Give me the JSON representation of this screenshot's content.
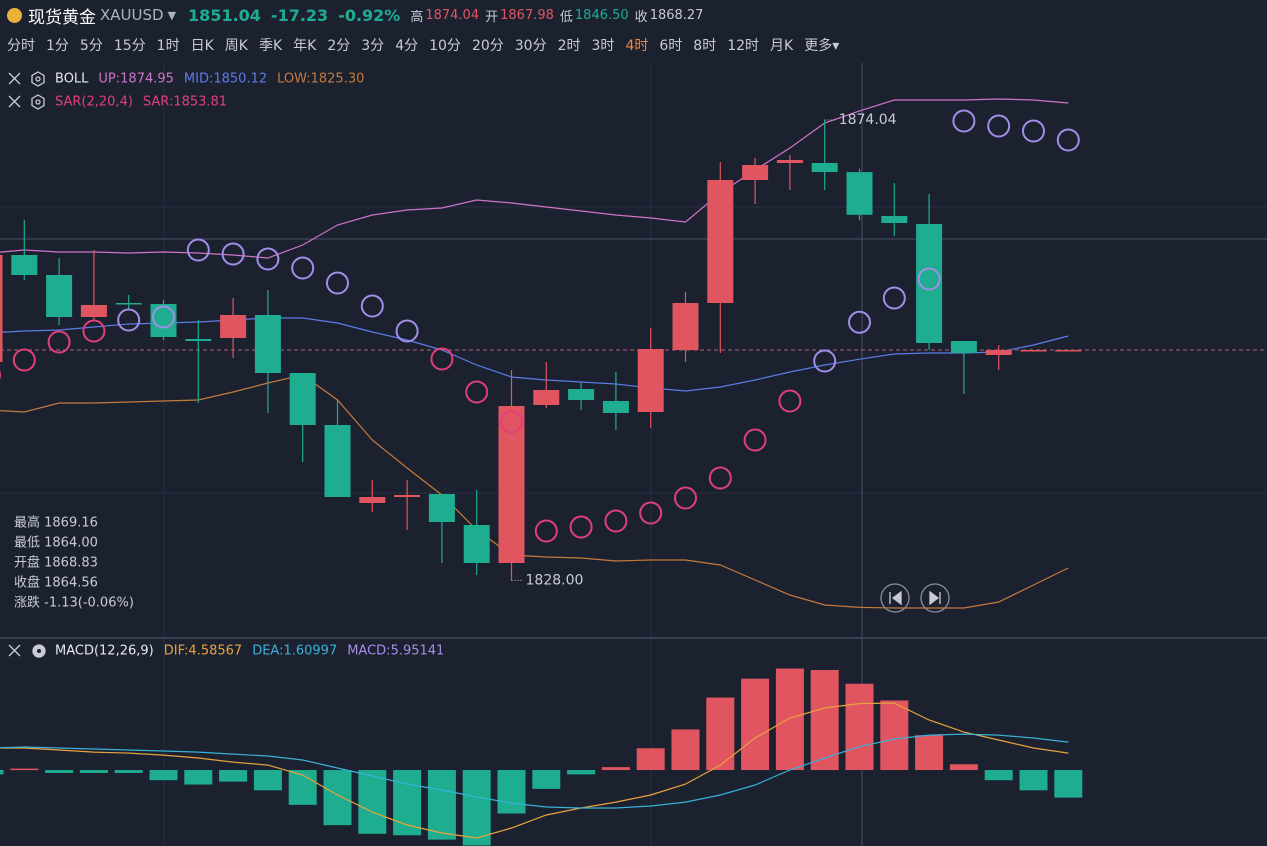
{
  "header": {
    "name": "现货黄金",
    "symbol": "XAUUSD",
    "price": "1851.04",
    "change": "-17.23",
    "change_pct": "-0.92%",
    "stats": [
      {
        "label": "高",
        "value": "1874.04",
        "color": "#e15561"
      },
      {
        "label": "开",
        "value": "1867.98",
        "color": "#e15561"
      },
      {
        "label": "低",
        "value": "1846.50",
        "color": "#1fad8f"
      },
      {
        "label": "收",
        "value": "1868.27",
        "color": "#c8cbd3"
      }
    ]
  },
  "tabs": {
    "items": [
      "分时",
      "1分",
      "5分",
      "15分",
      "1时",
      "日K",
      "周K",
      "季K",
      "年K",
      "2分",
      "3分",
      "4分",
      "10分",
      "20分",
      "30分",
      "2时",
      "3时",
      "4时",
      "6时",
      "8时",
      "12时",
      "月K",
      "更多▾"
    ],
    "active": 17,
    "active_color": "#f0873a"
  },
  "info": [
    "最高 1869.16",
    "最低 1864.00",
    "开盘 1868.83",
    "收盘 1864.56",
    "涨跌 -1.13(-0.06%)"
  ],
  "chart_data": [
    {
      "type": "candlestick",
      "ylim": [
        1822.34,
        1879.54
      ],
      "up_color": "#e15561",
      "down_color": "#1fad8f",
      "price_line": 1851.04,
      "open": [
        1849.84,
        1860.54,
        1858.54,
        1854.34,
        1855.74,
        1855.64,
        1852.14,
        1852.24,
        1854.54,
        1848.74,
        1843.54,
        1835.74,
        1836.34,
        1836.64,
        1833.54,
        1829.74,
        1845.54,
        1847.14,
        1845.94,
        1844.84,
        1851.04,
        1855.74,
        1868.04,
        1869.74,
        1869.74,
        1868.83,
        1864.44,
        1863.64,
        1851.94,
        1850.54,
        1851.04,
        1851.04
      ],
      "high": [
        1861.04,
        1864.04,
        1860.24,
        1861.04,
        1856.54,
        1856.04,
        1854.04,
        1856.24,
        1857.04,
        1848.74,
        1846.04,
        1838.04,
        1838.04,
        1836.64,
        1837.04,
        1849.04,
        1849.84,
        1847.84,
        1848.84,
        1853.24,
        1856.84,
        1869.84,
        1870.24,
        1870.54,
        1874.04,
        1869.16,
        1867.74,
        1866.64,
        1851.94,
        1851.54,
        1851.04,
        1851.04
      ],
      "low": [
        1849.54,
        1858.04,
        1853.54,
        1854.04,
        1855.04,
        1852.04,
        1845.74,
        1850.24,
        1844.74,
        1839.84,
        1836.34,
        1834.84,
        1833.04,
        1829.74,
        1828.54,
        1828.0,
        1845.24,
        1845.04,
        1843.04,
        1843.24,
        1849.84,
        1850.74,
        1865.64,
        1867.04,
        1867.04,
        1864.0,
        1862.44,
        1851.04,
        1846.64,
        1849.04,
        1851.04,
        1851.04
      ],
      "close": [
        1860.54,
        1858.54,
        1854.34,
        1855.54,
        1855.64,
        1852.34,
        1851.94,
        1854.54,
        1848.74,
        1843.54,
        1836.34,
        1836.34,
        1836.54,
        1833.84,
        1829.74,
        1845.44,
        1847.04,
        1846.04,
        1844.74,
        1851.14,
        1855.74,
        1868.04,
        1869.54,
        1870.04,
        1868.84,
        1864.56,
        1863.74,
        1851.74,
        1850.74,
        1851.04,
        1851.04,
        1851.04
      ],
      "legend": [
        {
          "name": "BOLL",
          "items": [
            {
              "text": "UP:1874.95",
              "color": "#d074c9"
            },
            {
              "text": "MID:1850.12",
              "color": "#5b7ce6"
            },
            {
              "text": "LOW:1825.30",
              "color": "#c57a3a"
            }
          ]
        },
        {
          "name": "SAR(2,20,4)",
          "name_color": "#e0407a",
          "items": [
            {
              "text": "SAR:1853.81",
              "color": "#e0407a"
            }
          ]
        }
      ],
      "lines": [
        {
          "color": "#d074c9",
          "values": [
            1860.74,
            1861.04,
            1860.84,
            1860.84,
            1860.74,
            1860.84,
            1860.74,
            1860.54,
            1860.24,
            1861.54,
            1863.54,
            1864.54,
            1865.04,
            1865.24,
            1866.04,
            1865.74,
            1865.34,
            1864.94,
            1864.54,
            1864.24,
            1863.84,
            1866.74,
            1869.04,
            1871.24,
            1873.74,
            1874.95,
            1876.04,
            1876.04,
            1876.04,
            1876.14,
            1876.04,
            1875.74
          ]
        },
        {
          "color": "#5b7ce6",
          "values": [
            1852.74,
            1852.94,
            1853.04,
            1853.34,
            1853.64,
            1853.74,
            1853.84,
            1854.04,
            1854.24,
            1854.24,
            1853.74,
            1852.84,
            1852.04,
            1851.04,
            1849.54,
            1848.34,
            1848.04,
            1847.84,
            1847.64,
            1847.24,
            1846.94,
            1847.34,
            1848.04,
            1848.84,
            1849.54,
            1850.12,
            1850.64,
            1850.74,
            1850.74,
            1850.84,
            1851.54,
            1852.44
          ]
        },
        {
          "color": "#c57a3a",
          "values": [
            1845.04,
            1844.84,
            1845.74,
            1845.74,
            1845.84,
            1845.94,
            1846.04,
            1846.84,
            1847.74,
            1848.54,
            1846.04,
            1842.04,
            1839.24,
            1836.54,
            1833.04,
            1830.54,
            1830.34,
            1830.24,
            1829.94,
            1830.04,
            1830.04,
            1829.54,
            1828.04,
            1826.54,
            1825.54,
            1825.3,
            1825.24,
            1825.24,
            1825.24,
            1825.84,
            1827.54,
            1829.24
          ]
        }
      ],
      "sar": {
        "above_color": "#a28ee8",
        "below_color": "#e0407a",
        "values": [
          1848.54,
          1850.04,
          1851.84,
          1852.94,
          1854.04,
          1854.34,
          1861.04,
          1860.64,
          1860.14,
          1859.24,
          1857.74,
          1855.44,
          1852.94,
          1850.14,
          1846.84,
          1843.84,
          1832.94,
          1833.34,
          1833.94,
          1834.74,
          1836.24,
          1838.24,
          1842.04,
          1845.94,
          1849.94,
          1853.81,
          1856.24,
          1858.14,
          1873.94,
          1873.44,
          1872.94,
          1872.04
        ]
      },
      "annotations": [
        {
          "text": "1874.04",
          "value": 1874.04
        },
        {
          "text": "1828.00",
          "value": 1828.0
        }
      ]
    },
    {
      "type": "macd",
      "ylim": [
        -5.24,
        8.97
      ],
      "up_color": "#e15561",
      "down_color": "#1fad8f",
      "legend": [
        {
          "name": "MACD(12,26,9)",
          "items": [
            {
              "text": "DIF:4.58567",
              "color": "#e8a33c"
            },
            {
              "text": "DEA:1.60997",
              "color": "#3ab0d6"
            },
            {
              "text": "MACD:5.95141",
              "color": "#a58de6"
            }
          ]
        }
      ],
      "values": [
        -0.3,
        0.1,
        -0.2,
        -0.2,
        -0.2,
        -0.7,
        -1.0,
        -0.8,
        -1.4,
        -2.4,
        -3.8,
        -4.4,
        -4.5,
        -4.8,
        -5.2,
        -3.0,
        -1.3,
        -0.3,
        0.2,
        1.5,
        2.8,
        5.0,
        6.3,
        7.0,
        6.9,
        5.95141,
        4.8,
        2.4,
        0.4,
        -0.7,
        -1.4,
        -1.9
      ],
      "lines": [
        {
          "color": "#e8a33c",
          "values": [
            1.52,
            1.52,
            1.38,
            1.24,
            1.17,
            1.03,
            0.83,
            0.55,
            0.34,
            -0.34,
            -1.72,
            -2.9,
            -3.79,
            -4.34,
            -4.69,
            -4.0,
            -3.1,
            -2.62,
            -2.21,
            -1.72,
            -0.97,
            0.34,
            2.21,
            3.59,
            4.28,
            4.58567,
            4.62,
            3.45,
            2.62,
            2.07,
            1.52,
            1.17
          ]
        },
        {
          "color": "#3ab0d6",
          "values": [
            1.52,
            1.59,
            1.52,
            1.45,
            1.38,
            1.31,
            1.24,
            1.1,
            0.97,
            0.69,
            0.14,
            -0.41,
            -0.97,
            -1.38,
            -1.86,
            -2.28,
            -2.55,
            -2.62,
            -2.62,
            -2.48,
            -2.21,
            -1.72,
            -1.03,
            0.0,
            0.83,
            1.60997,
            2.14,
            2.41,
            2.48,
            2.41,
            2.21,
            1.93
          ]
        }
      ]
    }
  ]
}
